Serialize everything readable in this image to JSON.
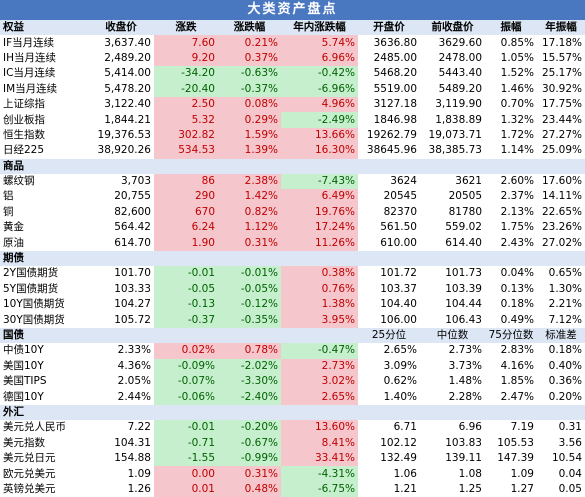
{
  "title": "大类资产盘点",
  "colors": {
    "header_bg": "#4a78c0",
    "section_bg": "#dce6f4",
    "pos_bg": "#f5c6cb",
    "pos_text": "#c00000",
    "neg_bg": "#c6efce",
    "neg_text": "#006100"
  },
  "header": [
    "权益",
    "收盘价",
    "涨跌",
    "涨跌幅",
    "年内涨跌幅",
    "开盘价",
    "前收盘价",
    "振幅",
    "年振幅"
  ],
  "equity": [
    [
      "IF当月连续",
      "3,637.40",
      "7.60",
      "0.21%",
      "5.74%",
      "3636.80",
      "3629.60",
      "0.85%",
      "17.18%"
    ],
    [
      "IH当月连续",
      "2,489.20",
      "9.20",
      "0.37%",
      "6.96%",
      "2485.00",
      "2478.00",
      "1.05%",
      "15.57%"
    ],
    [
      "IC当月连续",
      "5,414.00",
      "-34.20",
      "-0.63%",
      "-0.42%",
      "5468.20",
      "5443.40",
      "1.52%",
      "25.17%"
    ],
    [
      "IM当月连续",
      "5,478.20",
      "-20.40",
      "-0.37%",
      "-6.96%",
      "5519.00",
      "5489.20",
      "1.46%",
      "30.92%"
    ],
    [
      "上证综指",
      "3,122.40",
      "2.50",
      "0.08%",
      "4.96%",
      "3127.18",
      "3,119.90",
      "0.70%",
      "17.75%"
    ],
    [
      "创业板指",
      "1,844.21",
      "5.32",
      "0.29%",
      "-2.49%",
      "1846.98",
      "1,838.89",
      "1.32%",
      "23.44%"
    ],
    [
      "恒生指数",
      "19,376.53",
      "302.82",
      "1.59%",
      "13.66%",
      "19262.79",
      "19,073.71",
      "1.72%",
      "27.27%"
    ],
    [
      "日经225",
      "38,920.26",
      "534.53",
      "1.39%",
      "16.30%",
      "38645.96",
      "38,385.73",
      "1.14%",
      "25.09%"
    ]
  ],
  "commodity_title": "商品",
  "commodity": [
    [
      "螺纹钢",
      "3,703",
      "86",
      "2.38%",
      "-7.43%",
      "3624",
      "3621",
      "2.60%",
      "17.60%"
    ],
    [
      "铝",
      "20,755",
      "290",
      "1.42%",
      "6.49%",
      "20545",
      "20505",
      "2.37%",
      "14.11%"
    ],
    [
      "铜",
      "82,600",
      "670",
      "0.82%",
      "19.76%",
      "82370",
      "81780",
      "2.13%",
      "22.65%"
    ],
    [
      "黄金",
      "564.42",
      "6.24",
      "1.12%",
      "17.24%",
      "561.50",
      "559.02",
      "1.75%",
      "23.26%"
    ],
    [
      "原油",
      "614.70",
      "1.90",
      "0.31%",
      "11.26%",
      "610.00",
      "614.40",
      "2.43%",
      "27.02%"
    ]
  ],
  "futures_title": "期债",
  "futures": [
    [
      "2Y国债期货",
      "101.70",
      "-0.01",
      "-0.01%",
      "0.38%",
      "101.72",
      "101.73",
      "0.04%",
      "0.65%"
    ],
    [
      "5Y国债期货",
      "103.33",
      "-0.05",
      "-0.05%",
      "0.76%",
      "103.37",
      "103.39",
      "0.13%",
      "1.30%"
    ],
    [
      "10Y国债期货",
      "104.27",
      "-0.13",
      "-0.12%",
      "1.38%",
      "104.40",
      "104.44",
      "0.18%",
      "2.21%"
    ],
    [
      "30Y国债期货",
      "105.72",
      "-0.37",
      "-0.35%",
      "3.95%",
      "106.00",
      "106.43",
      "0.49%",
      "7.12%"
    ]
  ],
  "bond_title": "国债",
  "bond_header": [
    "25分位",
    "中位数",
    "75分位数",
    "标准差"
  ],
  "bonds": [
    [
      "中债10Y",
      "2.33%",
      "0.02%",
      "0.78%",
      "-0.47%",
      "2.65%",
      "2.73%",
      "2.83%",
      "0.18%"
    ],
    [
      "美国10Y",
      "4.36%",
      "-0.09%",
      "-2.02%",
      "2.73%",
      "3.09%",
      "3.73%",
      "4.16%",
      "0.40%"
    ],
    [
      "美国TIPS",
      "2.05%",
      "-0.07%",
      "-3.30%",
      "3.02%",
      "0.62%",
      "1.48%",
      "1.85%",
      "0.36%"
    ],
    [
      "德国10Y",
      "2.44%",
      "-0.06%",
      "-2.40%",
      "2.65%",
      "1.40%",
      "2.28%",
      "2.47%",
      "0.20%"
    ]
  ],
  "fx_title": "外汇",
  "fx": [
    [
      "美元兑人民币",
      "7.22",
      "-0.01",
      "-0.20%",
      "13.60%",
      "6.71",
      "6.96",
      "7.19",
      "0.31"
    ],
    [
      "美元指数",
      "104.31",
      "-0.71",
      "-0.67%",
      "8.41%",
      "102.12",
      "103.83",
      "105.53",
      "3.56"
    ],
    [
      "美元兑日元",
      "154.88",
      "-1.55",
      "-0.99%",
      "33.41%",
      "132.49",
      "139.11",
      "147.39",
      "10.54"
    ],
    [
      "欧元兑美元",
      "1.09",
      "0.00",
      "0.31%",
      "-4.31%",
      "1.06",
      "1.08",
      "1.09",
      "0.04"
    ],
    [
      "英镑兑美元",
      "1.26",
      "0.01",
      "0.48%",
      "-6.75%",
      "1.21",
      "1.25",
      "1.27",
      "0.05"
    ]
  ]
}
